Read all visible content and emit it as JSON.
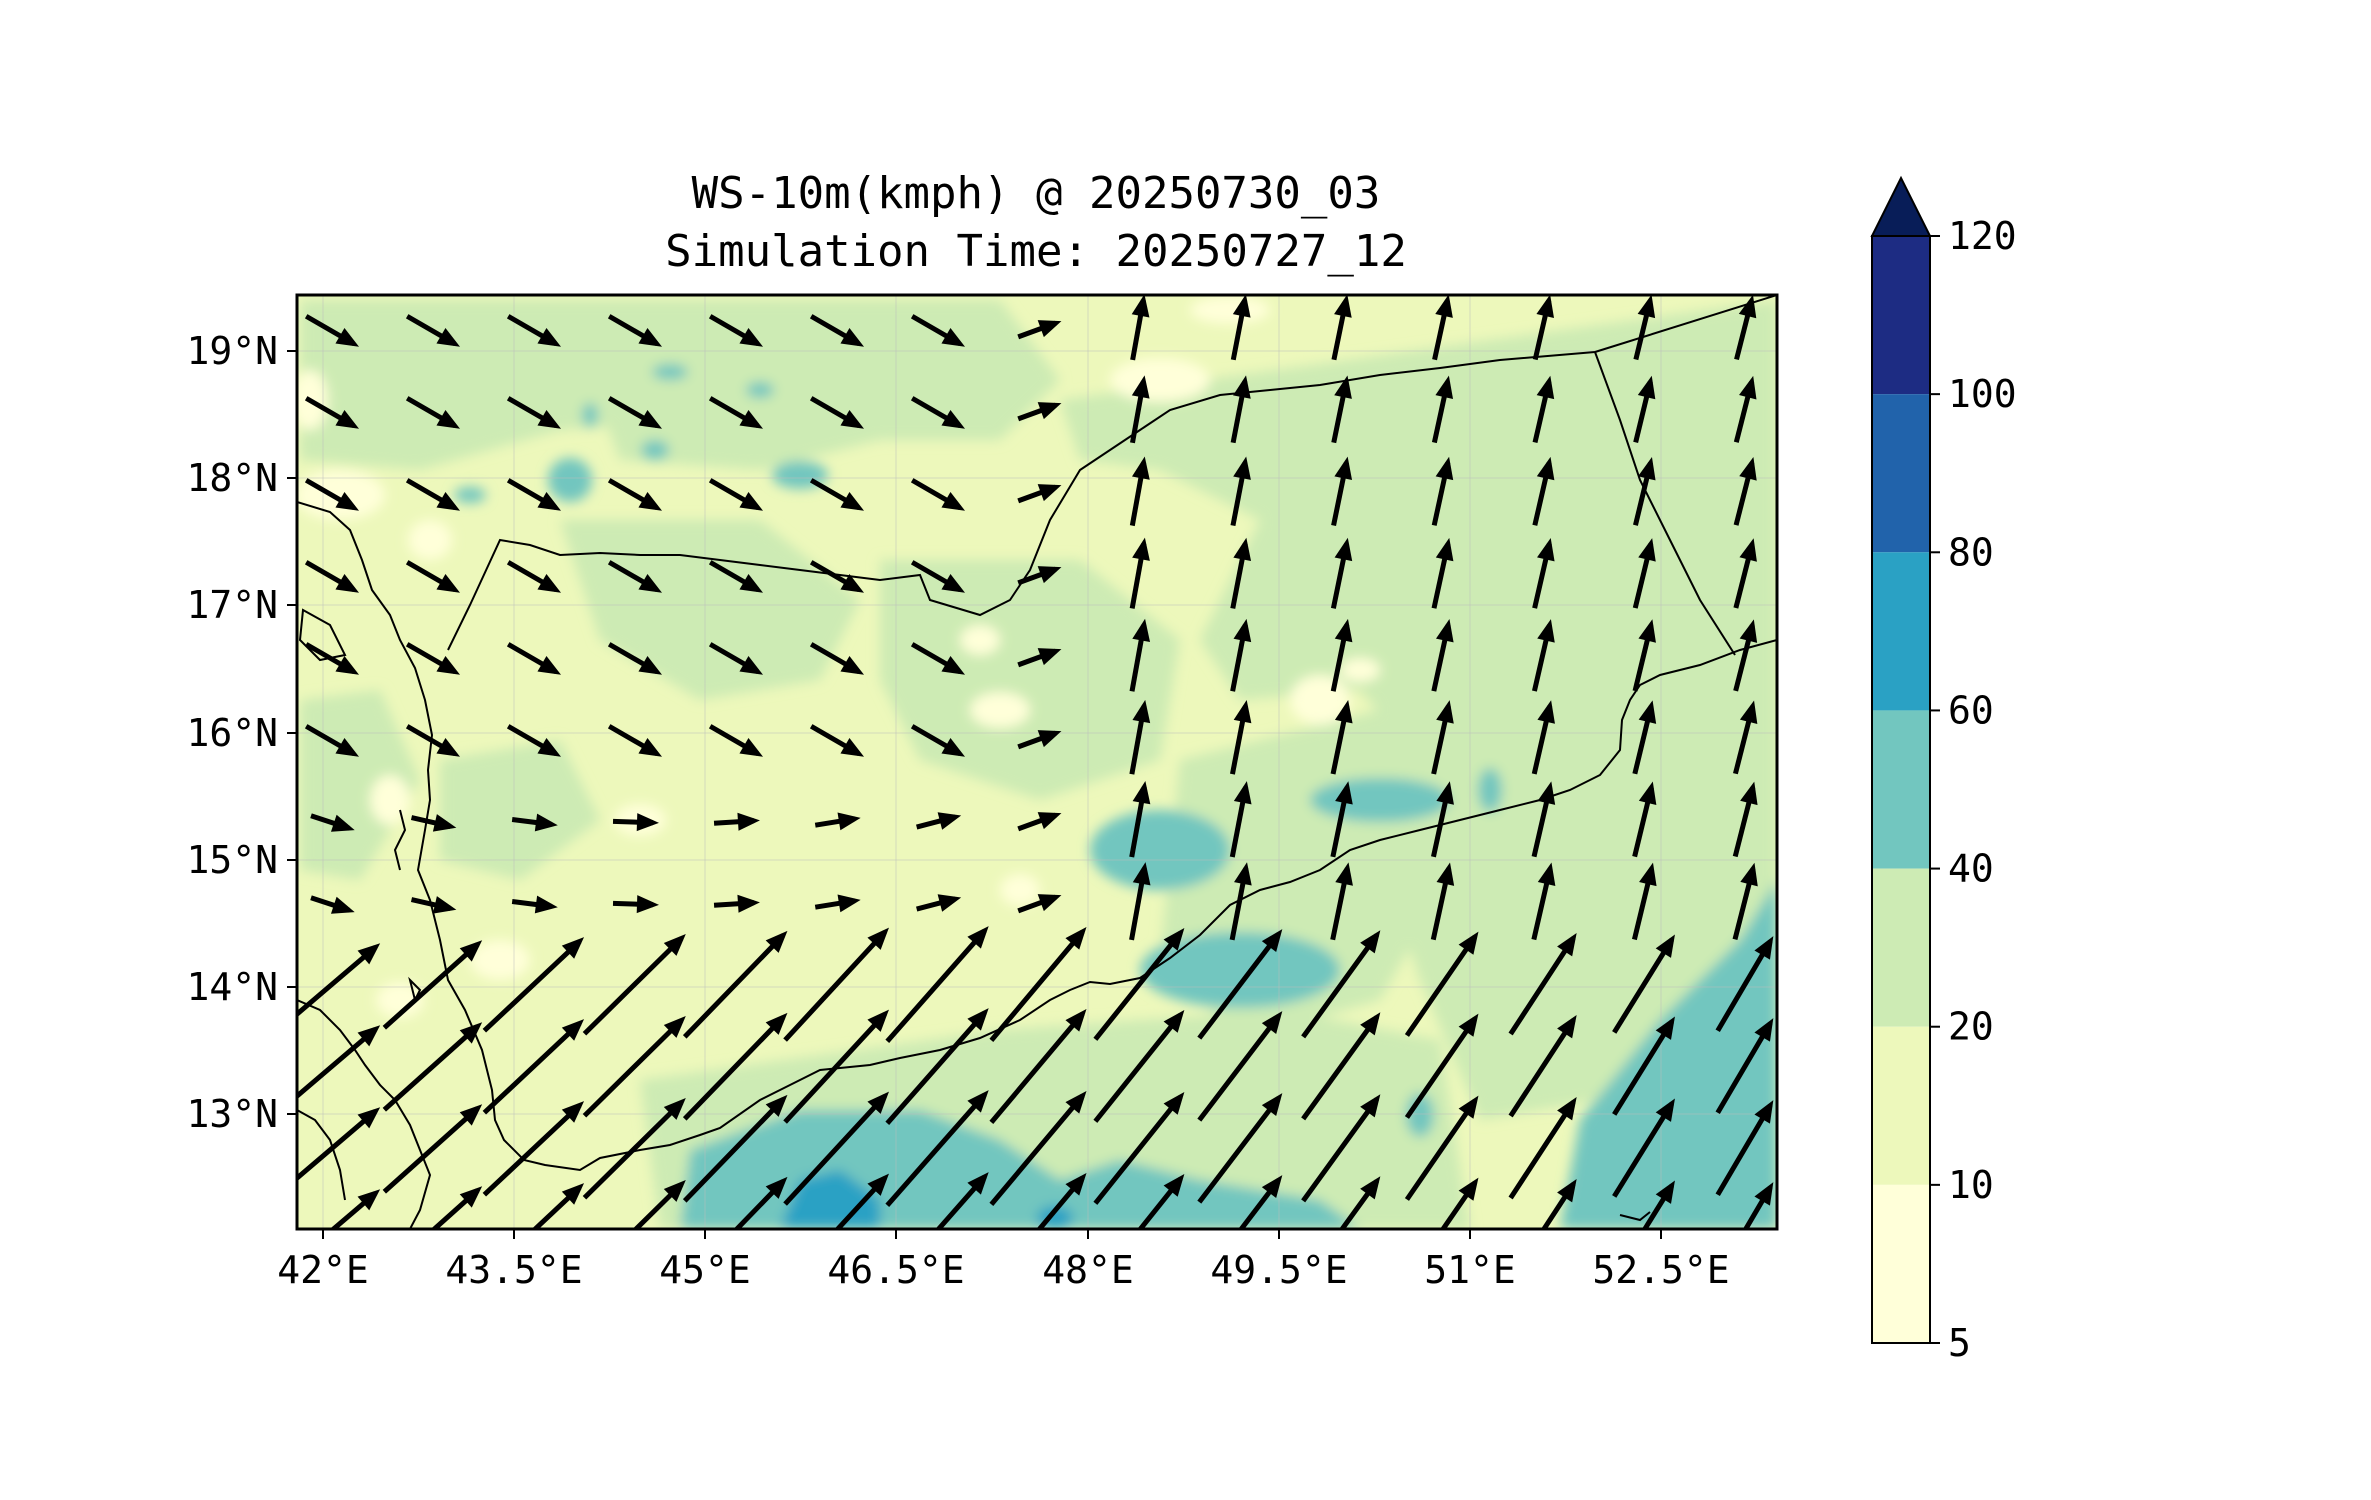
{
  "map": {
    "title_line1": "WS-10m(kmph) @ 20250730_03",
    "title_line2": "Simulation Time: 20250727_12",
    "lon_range": [
      41.9,
      53.5
    ],
    "lat_range": [
      12.1,
      19.45
    ],
    "lon_ticks": [
      "42°E",
      "43.5°E",
      "45°E",
      "46.5°E",
      "48°E",
      "49.5°E",
      "51°E",
      "52.5°E"
    ],
    "lat_ticks": [
      "19°N",
      "18°N",
      "17°N",
      "16°N",
      "15°N",
      "14°N",
      "13°N"
    ],
    "land_outline_color": "#000000"
  },
  "colorbar": {
    "levels": [
      "120",
      "100",
      "80",
      "60",
      "40",
      "20",
      "10",
      "5"
    ],
    "colors": [
      "#081d58",
      "#1d2c83",
      "#2163ab",
      "#2aa1c4",
      "#72c6bf",
      "#cdebb4",
      "#edf8bb",
      "#ffffd9"
    ],
    "extend": "max"
  }
}
